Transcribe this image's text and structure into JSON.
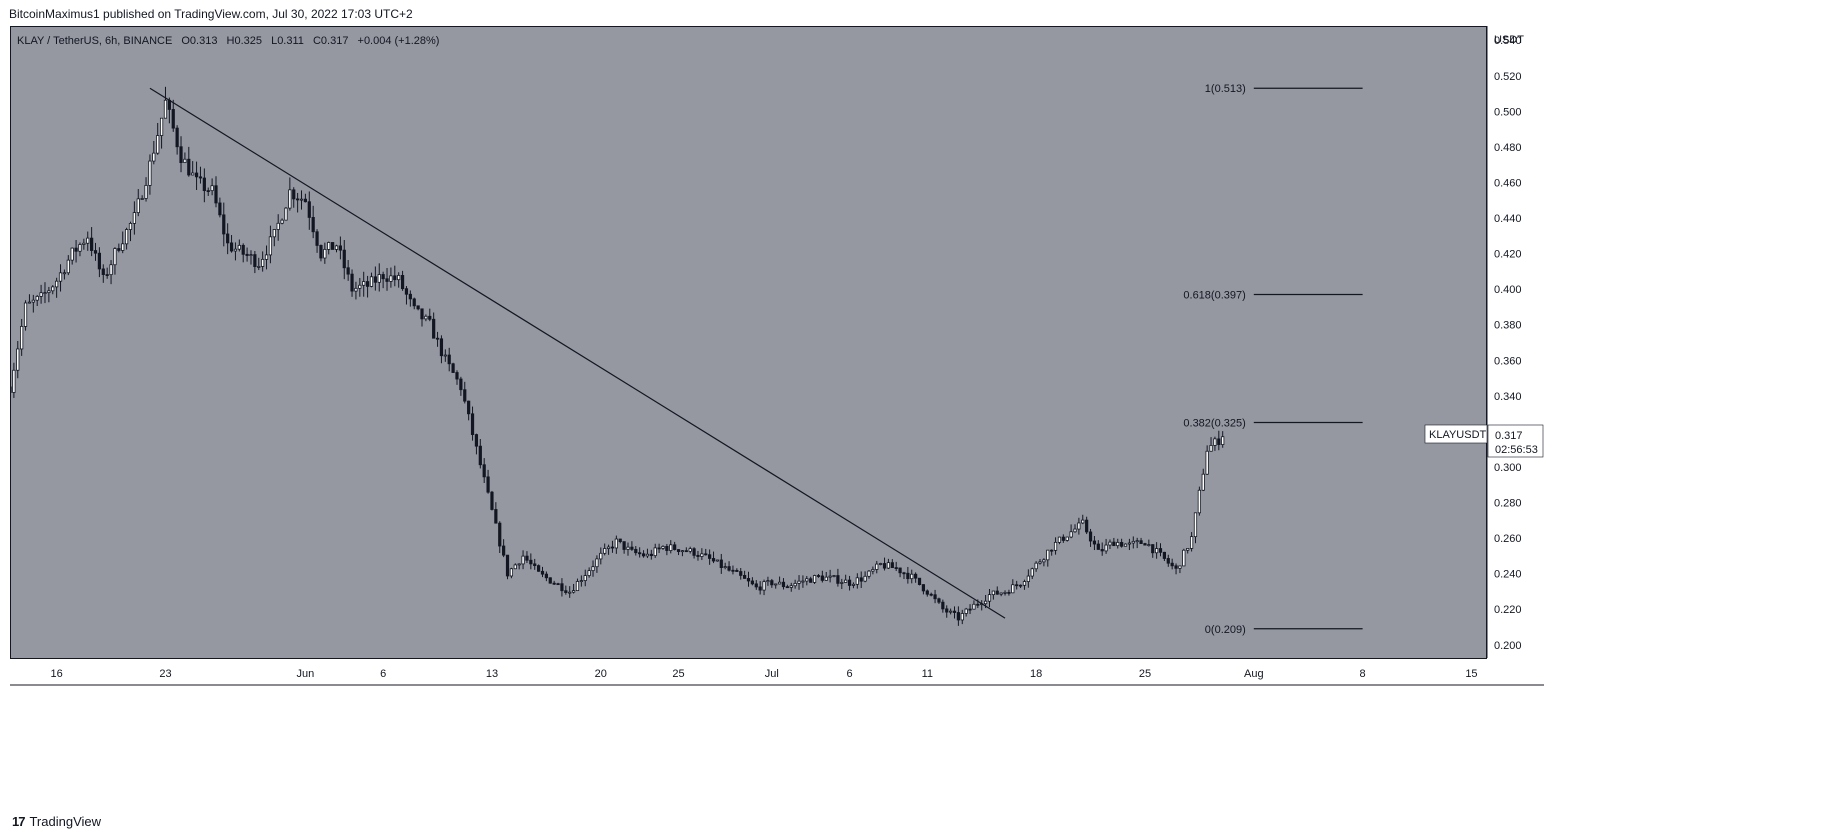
{
  "header": {
    "attribution": "BitcoinMaximus1 published on TradingView.com, Jul 30, 2022 17:03 UTC+2"
  },
  "legend": {
    "symbol": "KLAY / TetherUS, 6h, BINANCE",
    "o_label": "O",
    "o_value": "0.313",
    "h_label": "H",
    "h_value": "0.325",
    "l_label": "L",
    "l_value": "0.311",
    "c_label": "C",
    "c_value": "0.317",
    "change": "+0.004 (+1.28%)"
  },
  "price_tag": {
    "symbol": "KLAYUSDT",
    "price": "0.317",
    "countdown": "02:56:53"
  },
  "footer": {
    "logo": "17",
    "brand": "TradingView"
  },
  "colors": {
    "plot_bg": "#9598a1",
    "candle": "#131722",
    "axis_bg": "#ffffff",
    "text": "#131722"
  },
  "chart_data": {
    "type": "candlestick",
    "yaxis_unit": "USDT",
    "ylim": [
      0.192,
      0.548
    ],
    "y_ticks": [
      0.2,
      0.22,
      0.24,
      0.26,
      0.28,
      0.3,
      0.32,
      0.34,
      0.36,
      0.38,
      0.4,
      0.42,
      0.44,
      0.46,
      0.48,
      0.5,
      0.52,
      0.54
    ],
    "y_tick_labels": [
      "0.200",
      "0.220",
      "0.240",
      "0.260",
      "0.280",
      "0.300",
      "0.320",
      "0.340",
      "0.360",
      "0.380",
      "0.400",
      "0.420",
      "0.440",
      "0.460",
      "0.480",
      "0.500",
      "0.520",
      "0.540"
    ],
    "xlim": [
      "2022-05-13",
      "2022-08-16"
    ],
    "x_ticks": [
      {
        "date": "2022-05-16",
        "label": "16"
      },
      {
        "date": "2022-05-23",
        "label": "23"
      },
      {
        "date": "2022-06-01",
        "label": "Jun"
      },
      {
        "date": "2022-06-06",
        "label": "6"
      },
      {
        "date": "2022-06-13",
        "label": "13"
      },
      {
        "date": "2022-06-20",
        "label": "20"
      },
      {
        "date": "2022-06-25",
        "label": "25"
      },
      {
        "date": "2022-07-01",
        "label": "Jul"
      },
      {
        "date": "2022-07-06",
        "label": "6"
      },
      {
        "date": "2022-07-11",
        "label": "11"
      },
      {
        "date": "2022-07-18",
        "label": "18"
      },
      {
        "date": "2022-07-25",
        "label": "25"
      },
      {
        "date": "2022-08-01",
        "label": "Aug"
      },
      {
        "date": "2022-08-08",
        "label": "8"
      },
      {
        "date": "2022-08-15",
        "label": "15"
      }
    ],
    "price_path": [
      {
        "date": "2022-05-13",
        "price": 0.345
      },
      {
        "date": "2022-05-14",
        "price": 0.39
      },
      {
        "date": "2022-05-15",
        "price": 0.395
      },
      {
        "date": "2022-05-16",
        "price": 0.405
      },
      {
        "date": "2022-05-17",
        "price": 0.42
      },
      {
        "date": "2022-05-18",
        "price": 0.43
      },
      {
        "date": "2022-05-19",
        "price": 0.405
      },
      {
        "date": "2022-05-20",
        "price": 0.425
      },
      {
        "date": "2022-05-21",
        "price": 0.44
      },
      {
        "date": "2022-05-22",
        "price": 0.47
      },
      {
        "date": "2022-05-23",
        "price": 0.505
      },
      {
        "date": "2022-05-24",
        "price": 0.475
      },
      {
        "date": "2022-05-25",
        "price": 0.46
      },
      {
        "date": "2022-05-26",
        "price": 0.455
      },
      {
        "date": "2022-05-27",
        "price": 0.425
      },
      {
        "date": "2022-05-28",
        "price": 0.42
      },
      {
        "date": "2022-05-29",
        "price": 0.415
      },
      {
        "date": "2022-05-30",
        "price": 0.43
      },
      {
        "date": "2022-05-31",
        "price": 0.455
      },
      {
        "date": "2022-06-01",
        "price": 0.45
      },
      {
        "date": "2022-06-02",
        "price": 0.42
      },
      {
        "date": "2022-06-03",
        "price": 0.425
      },
      {
        "date": "2022-06-04",
        "price": 0.4
      },
      {
        "date": "2022-06-05",
        "price": 0.402
      },
      {
        "date": "2022-06-06",
        "price": 0.408
      },
      {
        "date": "2022-06-07",
        "price": 0.405
      },
      {
        "date": "2022-06-08",
        "price": 0.388
      },
      {
        "date": "2022-06-09",
        "price": 0.38
      },
      {
        "date": "2022-06-10",
        "price": 0.36
      },
      {
        "date": "2022-06-11",
        "price": 0.345
      },
      {
        "date": "2022-06-12",
        "price": 0.31
      },
      {
        "date": "2022-06-13",
        "price": 0.275
      },
      {
        "date": "2022-06-14",
        "price": 0.24
      },
      {
        "date": "2022-06-15",
        "price": 0.25
      },
      {
        "date": "2022-06-16",
        "price": 0.24
      },
      {
        "date": "2022-06-17",
        "price": 0.235
      },
      {
        "date": "2022-06-18",
        "price": 0.23
      },
      {
        "date": "2022-06-19",
        "price": 0.24
      },
      {
        "date": "2022-06-20",
        "price": 0.25
      },
      {
        "date": "2022-06-21",
        "price": 0.258
      },
      {
        "date": "2022-06-22",
        "price": 0.252
      },
      {
        "date": "2022-06-23",
        "price": 0.25
      },
      {
        "date": "2022-06-24",
        "price": 0.255
      },
      {
        "date": "2022-06-25",
        "price": 0.254
      },
      {
        "date": "2022-06-26",
        "price": 0.252
      },
      {
        "date": "2022-06-27",
        "price": 0.248
      },
      {
        "date": "2022-06-28",
        "price": 0.243
      },
      {
        "date": "2022-06-29",
        "price": 0.238
      },
      {
        "date": "2022-06-30",
        "price": 0.232
      },
      {
        "date": "2022-07-01",
        "price": 0.235
      },
      {
        "date": "2022-07-02",
        "price": 0.233
      },
      {
        "date": "2022-07-03",
        "price": 0.236
      },
      {
        "date": "2022-07-04",
        "price": 0.238
      },
      {
        "date": "2022-07-05",
        "price": 0.237
      },
      {
        "date": "2022-07-06",
        "price": 0.235
      },
      {
        "date": "2022-07-07",
        "price": 0.238
      },
      {
        "date": "2022-07-08",
        "price": 0.245
      },
      {
        "date": "2022-07-09",
        "price": 0.243
      },
      {
        "date": "2022-07-10",
        "price": 0.238
      },
      {
        "date": "2022-07-11",
        "price": 0.23
      },
      {
        "date": "2022-07-12",
        "price": 0.22
      },
      {
        "date": "2022-07-13",
        "price": 0.215
      },
      {
        "date": "2022-07-14",
        "price": 0.222
      },
      {
        "date": "2022-07-15",
        "price": 0.228
      },
      {
        "date": "2022-07-16",
        "price": 0.23
      },
      {
        "date": "2022-07-17",
        "price": 0.235
      },
      {
        "date": "2022-07-18",
        "price": 0.245
      },
      {
        "date": "2022-07-19",
        "price": 0.255
      },
      {
        "date": "2022-07-20",
        "price": 0.262
      },
      {
        "date": "2022-07-21",
        "price": 0.268
      },
      {
        "date": "2022-07-22",
        "price": 0.252
      },
      {
        "date": "2022-07-23",
        "price": 0.258
      },
      {
        "date": "2022-07-24",
        "price": 0.256
      },
      {
        "date": "2022-07-25",
        "price": 0.258
      },
      {
        "date": "2022-07-26",
        "price": 0.25
      },
      {
        "date": "2022-07-27",
        "price": 0.242
      },
      {
        "date": "2022-07-28",
        "price": 0.26
      },
      {
        "date": "2022-07-29",
        "price": 0.31
      },
      {
        "date": "2022-07-30",
        "price": 0.317
      }
    ],
    "trendline": {
      "start": {
        "date": "2022-05-22",
        "price": 0.513
      },
      "end": {
        "date": "2022-07-16",
        "price": 0.215
      }
    },
    "fib_levels": [
      {
        "ratio": "1",
        "value": 0.513,
        "label": "1(0.513)"
      },
      {
        "ratio": "0.618",
        "value": 0.397,
        "label": "0.618(0.397)"
      },
      {
        "ratio": "0.382",
        "value": 0.325,
        "label": "0.382(0.325)"
      },
      {
        "ratio": "0",
        "value": 0.209,
        "label": "0(0.209)"
      }
    ],
    "fib_xrange": [
      "2022-08-01",
      "2022-08-08"
    ],
    "last_price": 0.317
  }
}
